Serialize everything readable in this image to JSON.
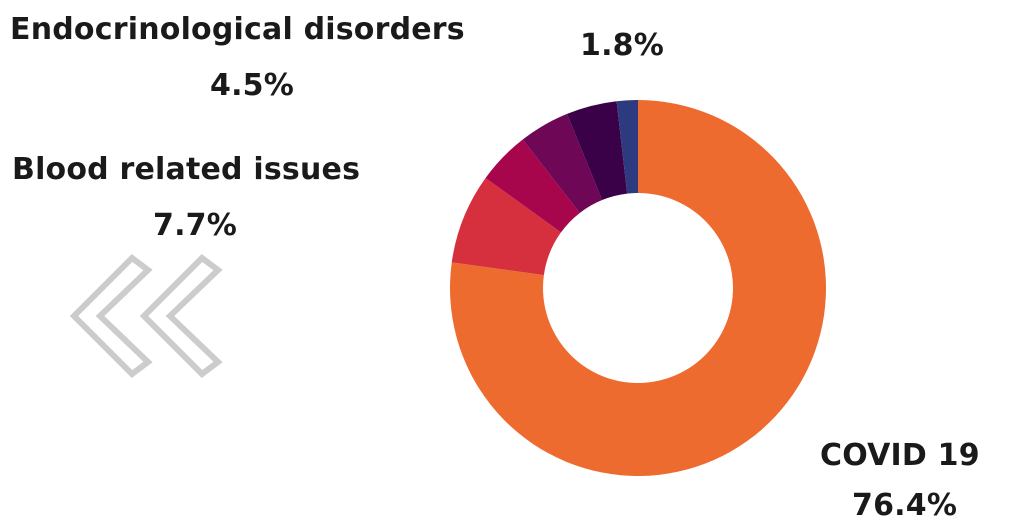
{
  "chart_data": {
    "type": "pie",
    "variant": "donut",
    "title": "",
    "slices": [
      {
        "label": "COVID 19",
        "value": 76.4,
        "display": "76.4%",
        "color": "#ee6b2f"
      },
      {
        "label": "Blood related issues",
        "value": 7.7,
        "display": "7.7%",
        "color": "#d6303f"
      },
      {
        "label": "Endocrinological disorders",
        "value": 4.5,
        "display": "4.5%",
        "color": "#a8064c"
      },
      {
        "label": "",
        "value": 4.3,
        "display": "",
        "color": "#6e0756"
      },
      {
        "label": "",
        "value": 4.3,
        "display": "",
        "color": "#3a0148"
      },
      {
        "label": "",
        "value": 1.8,
        "display": "1.8%",
        "color": "#2d3a80"
      }
    ]
  },
  "labels": {
    "endocrine_name": "Endocrinological disorders",
    "endocrine_value": "4.5%",
    "blood_name": "Blood related issues",
    "blood_value": "7.7%",
    "small_value": "1.8%",
    "covid_name": "COVID 19",
    "covid_value": "76.4%"
  },
  "decoration": {
    "chevron_icon_color": "#cccccc"
  }
}
